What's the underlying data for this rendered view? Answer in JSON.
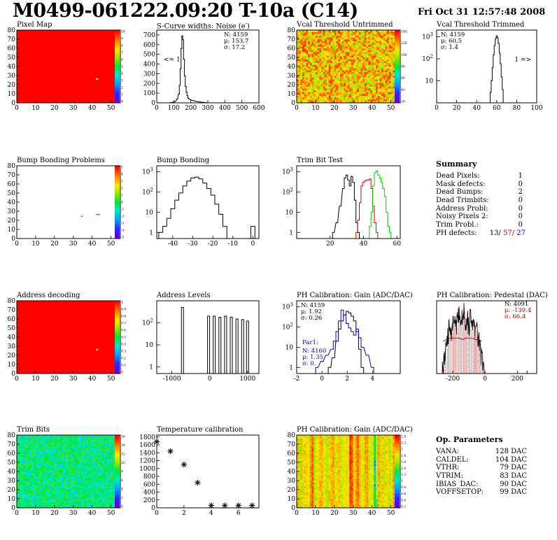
{
  "header": {
    "title": "M0499-061222.09:20 T-10a (C14)",
    "date": "Fri Oct 31 12:57:48 2008"
  },
  "colors": {
    "map_red": "#ff0000",
    "trim_bit_green": "#00cc00",
    "trim_bit_red": "#cc0000",
    "gain_blue": "#0000cc",
    "pedestal_red": "#cc0000",
    "ph_defect_red": "#cc0000",
    "ph_defect_blue": "#0000cc"
  },
  "colorbar_pixel_map": [
    "10",
    "9",
    "8",
    "7",
    "6",
    "5",
    "4",
    "3",
    "2",
    "1",
    "0"
  ],
  "colorbar_bump": [
    "5",
    "4",
    "3",
    "2",
    "1",
    "0",
    "-1",
    "-2",
    "-3",
    "-4",
    "-5"
  ],
  "colorbar_address": [
    "1",
    "0.9",
    "0.8",
    "0.7",
    "0.6",
    "0.5",
    "0.4",
    "0.3",
    "0.2",
    "0.1",
    "0"
  ],
  "colorbar_vcal": [
    "140",
    "120",
    "100",
    "80",
    "60",
    "40",
    "20"
  ],
  "colorbar_trim": [
    "16",
    "14",
    "12",
    "10",
    "8",
    "6",
    "4",
    "2",
    "0"
  ],
  "colorbar_gainmap": [
    "2.4",
    "2.2",
    "2",
    "1.8",
    "1.6",
    "1.4",
    "1.2",
    "1",
    "0.8",
    "0.6",
    "0.4",
    "0.2"
  ],
  "chart_data": [
    {
      "id": "pixel_map",
      "type": "heatmap",
      "title": "Pixel Map",
      "x_ticks": [
        "0",
        "10",
        "20",
        "30",
        "40",
        "50"
      ],
      "y_ticks": [
        "0",
        "10",
        "20",
        "30",
        "40",
        "50",
        "60",
        "70",
        "80"
      ],
      "xlim": [
        0,
        52
      ],
      "ylim": [
        0,
        80
      ],
      "fill": "uniform 10",
      "dead_pixels": [
        {
          "col": 42,
          "row": 26
        }
      ]
    },
    {
      "id": "scurve_noise",
      "type": "histogram",
      "title": "S-Curve widths: Noise (e",
      "title_sup": "-",
      "title_end": ")",
      "x_ticks": [
        "0",
        "100",
        "200",
        "300",
        "400",
        "500",
        "600"
      ],
      "xlim": [
        0,
        600
      ],
      "y_ticks": [
        "0",
        "100",
        "200",
        "300",
        "400",
        "500",
        "600",
        "700"
      ],
      "ylim": [
        0,
        750
      ],
      "stats": {
        "n": "N: 4159",
        "mean": "μ: 153.7",
        "sigma": "σ: 17.2"
      },
      "annotation": "<= 1",
      "x": [
        80,
        90,
        100,
        110,
        120,
        130,
        135,
        140,
        145,
        150,
        155,
        160,
        165,
        170,
        175,
        180,
        185,
        190,
        200,
        210,
        220,
        230,
        240,
        250,
        260,
        270,
        280,
        290
      ],
      "values": [
        2,
        4,
        8,
        15,
        40,
        90,
        180,
        350,
        560,
        690,
        650,
        450,
        280,
        170,
        110,
        75,
        50,
        40,
        30,
        25,
        20,
        15,
        12,
        10,
        7,
        5,
        4,
        2
      ]
    },
    {
      "id": "vcal_untrimmed",
      "type": "heatmap",
      "title": "Vcal Threshold Untrimmed",
      "x_ticks": [
        "0",
        "10",
        "20",
        "30",
        "40",
        "50"
      ],
      "y_ticks": [
        "0",
        "10",
        "20",
        "30",
        "40",
        "50",
        "60",
        "70",
        "80"
      ],
      "xlim": [
        0,
        52
      ],
      "ylim": [
        0,
        80
      ],
      "zlim": [
        20,
        140
      ]
    },
    {
      "id": "vcal_trimmed",
      "type": "histogram",
      "title": "Vcal Threshold Trimmed",
      "log_y": true,
      "x_ticks": [
        "0",
        "20",
        "40",
        "60",
        "80",
        "100"
      ],
      "xlim": [
        0,
        100
      ],
      "y_ticks": [
        "10",
        "10",
        "10"
      ],
      "y_sup": [
        "3",
        "2",
        ""
      ],
      "ylim": [
        1,
        2000
      ],
      "stats": {
        "n": "N: 4159",
        "mean": "μ: 60.5",
        "sigma": "σ: 1.4"
      },
      "annotation": "1 =>",
      "x": [
        53,
        54,
        55,
        56,
        57,
        58,
        59,
        60,
        61,
        62,
        63,
        64,
        65,
        66,
        67
      ],
      "values": [
        1,
        3,
        10,
        40,
        150,
        400,
        800,
        1100,
        900,
        500,
        180,
        60,
        15,
        4,
        1
      ]
    },
    {
      "id": "bump_problems",
      "type": "heatmap",
      "title": "Bump Bonding Problems",
      "x_ticks": [
        "0",
        "10",
        "20",
        "30",
        "40",
        "50"
      ],
      "y_ticks": [
        "0",
        "10",
        "20",
        "30",
        "40",
        "50",
        "60",
        "70",
        "80"
      ],
      "xlim": [
        0,
        52
      ],
      "ylim": [
        0,
        80
      ],
      "zlim": [
        -5,
        5
      ],
      "flagged": [
        {
          "col": 34,
          "row": 24
        },
        {
          "col": 42,
          "row": 26
        },
        {
          "col": 43,
          "row": 26
        }
      ]
    },
    {
      "id": "bump_bonding",
      "type": "histogram",
      "title": "Bump Bonding",
      "log_y": true,
      "x_ticks": [
        "-40",
        "-30",
        "-20",
        "-10",
        "0"
      ],
      "xlim": [
        -48,
        3
      ],
      "y_ticks": [
        "1",
        "10",
        "10",
        "10"
      ],
      "y_sup": [
        "",
        "",
        "2",
        "3"
      ],
      "ylim": [
        0.5,
        2000
      ],
      "x": [
        -46,
        -44,
        -42,
        -40,
        -38,
        -36,
        -34,
        -32,
        -30,
        -28,
        -26,
        -24,
        -22,
        -20,
        -18,
        -16,
        -14,
        -12,
        -10,
        -8,
        -6,
        -4,
        -2,
        0
      ],
      "values": [
        1,
        2,
        5,
        15,
        40,
        90,
        200,
        350,
        500,
        550,
        450,
        280,
        150,
        70,
        25,
        8,
        2,
        0,
        0,
        0,
        0,
        0,
        0,
        2
      ]
    },
    {
      "id": "trim_bit_test",
      "type": "histogram",
      "title": "Trim Bit Test",
      "log_y": true,
      "x_ticks": [
        "20",
        "40",
        "60"
      ],
      "xlim": [
        0,
        62
      ],
      "y_ticks": [
        "1",
        "10",
        "10",
        "10"
      ],
      "y_sup": [
        "",
        "",
        "2",
        "3"
      ],
      "ylim": [
        0.5,
        2000
      ],
      "series": [
        {
          "name": "trim bit 1",
          "color": "black",
          "x": [
            22,
            24,
            26,
            28,
            29,
            30,
            31,
            32,
            33,
            34,
            35,
            36,
            37
          ],
          "values": [
            1,
            3,
            20,
            150,
            500,
            700,
            400,
            200,
            600,
            300,
            40,
            3,
            1
          ]
        },
        {
          "name": "trim bit 2",
          "color": "red",
          "x": [
            36,
            37,
            38,
            39,
            40,
            41,
            42,
            43,
            44,
            45,
            46,
            47,
            48
          ],
          "values": [
            1,
            4,
            30,
            200,
            300,
            350,
            400,
            380,
            450,
            150,
            20,
            3,
            1
          ]
        },
        {
          "name": "trim bit 3",
          "color": "green",
          "x": [
            44,
            45,
            46,
            47,
            48,
            49,
            50,
            51,
            52,
            53,
            54,
            55,
            56
          ],
          "values": [
            2,
            10,
            200,
            900,
            1100,
            700,
            500,
            300,
            150,
            60,
            10,
            2,
            1
          ]
        }
      ]
    },
    {
      "id": "address_decoding",
      "type": "heatmap",
      "title": "Address decoding",
      "x_ticks": [
        "0",
        "10",
        "20",
        "30",
        "40",
        "50"
      ],
      "y_ticks": [
        "0",
        "10",
        "20",
        "30",
        "40",
        "50",
        "60",
        "70",
        "80"
      ],
      "xlim": [
        0,
        52
      ],
      "ylim": [
        0,
        80
      ],
      "zlim": [
        0,
        1
      ],
      "fill": "uniform 1",
      "dead_pixels": [
        {
          "col": 42,
          "row": 26
        }
      ]
    },
    {
      "id": "address_levels",
      "type": "histogram",
      "title": "Address Levels",
      "log_y": true,
      "x_ticks": [
        "-1000",
        "0",
        "1000"
      ],
      "xlim": [
        -1400,
        1300
      ],
      "y_ticks": [
        "1",
        "10",
        "10"
      ],
      "y_sup": [
        "",
        "",
        "2"
      ],
      "ylim": [
        0.5,
        1000
      ],
      "peaks_x": [
        -720,
        -30,
        120,
        270,
        420,
        570,
        720,
        870,
        1000
      ],
      "peaks_values": [
        500,
        200,
        200,
        180,
        200,
        180,
        150,
        140,
        120
      ]
    },
    {
      "id": "gain",
      "type": "histogram",
      "title": "PH Calibration: Gain (ADC/DAC)",
      "log_y": true,
      "x_ticks": [
        "-2",
        "0",
        "2",
        "4"
      ],
      "xlim": [
        -2,
        6.2
      ],
      "y_ticks": [
        "1",
        "10",
        "10",
        "10"
      ],
      "y_sup": [
        "",
        "",
        "2",
        "3"
      ],
      "ylim": [
        0.5,
        2000
      ],
      "stats": {
        "n": "N: 4159",
        "mean": "μ: 1.92",
        "sigma": "σ: 0.26"
      },
      "fit_label": "Par1:",
      "fit_stats": {
        "n": "N: 4160",
        "mean": "μ: 1.35",
        "sigma": "σ: 0."
      },
      "series": [
        {
          "name": "gain",
          "color": "black",
          "x": [
            0.6,
            0.9,
            1.2,
            1.4,
            1.6,
            1.8,
            2.0,
            2.2,
            2.4,
            2.6,
            2.8,
            3.0,
            3.2
          ],
          "values": [
            1,
            3,
            20,
            80,
            200,
            400,
            600,
            500,
            350,
            200,
            60,
            8,
            1
          ]
        },
        {
          "name": "par1",
          "color": "blue",
          "x": [
            -0.4,
            0,
            0.4,
            0.8,
            1.0,
            1.2,
            1.4,
            1.6,
            1.8,
            2.0,
            2.2,
            2.4,
            2.6,
            2.8,
            3.0,
            3.2,
            3.6,
            4.0
          ],
          "values": [
            1,
            2,
            4,
            8,
            20,
            60,
            200,
            700,
            400,
            150,
            90,
            60,
            40,
            80,
            30,
            10,
            4,
            1
          ]
        }
      ]
    },
    {
      "id": "pedestal",
      "type": "histogram",
      "title": "PH Calibration: Pedestal (DAC)",
      "x_ticks": [
        "-200",
        "0",
        "200"
      ],
      "xlim": [
        -300,
        320
      ],
      "y_ticks": [],
      "ylim": [
        0,
        45
      ],
      "stats": {
        "n": "N: 4091",
        "mean": "μ: -139.4",
        "sigma": "σ: 66.4"
      },
      "series": [
        {
          "name": "pedestal",
          "color": "black",
          "x": [
            -260,
            -250,
            -240,
            -230,
            -220,
            -210,
            -200,
            -190,
            -180,
            -170,
            -160,
            -150,
            -140,
            -130,
            -120,
            -110,
            -100,
            -90,
            -80,
            -70,
            -60,
            -50,
            -40,
            -30,
            -20,
            -10
          ],
          "values": [
            2,
            8,
            15,
            22,
            28,
            25,
            30,
            35,
            28,
            32,
            36,
            30,
            34,
            38,
            30,
            33,
            29,
            35,
            27,
            30,
            24,
            26,
            20,
            18,
            10,
            3
          ]
        },
        {
          "name": "fit",
          "color": "red",
          "x": [
            -260,
            -240,
            -220,
            -200,
            -180,
            -160,
            -140,
            -120,
            -100,
            -80,
            -60,
            -40,
            -20
          ],
          "values": [
            20,
            21,
            22,
            22,
            22,
            22,
            21,
            22,
            22,
            22,
            21,
            21,
            20
          ]
        }
      ],
      "outlier": {
        "x": 260,
        "value": 1
      }
    },
    {
      "id": "trim_bits",
      "type": "heatmap",
      "title": "Trim Bits",
      "x_ticks": [
        "0",
        "10",
        "20",
        "30",
        "40",
        "50"
      ],
      "y_ticks": [
        "0",
        "10",
        "20",
        "30",
        "40",
        "50",
        "60",
        "70",
        "80"
      ],
      "xlim": [
        0,
        52
      ],
      "ylim": [
        0,
        80
      ],
      "zlim": [
        0,
        16
      ]
    },
    {
      "id": "temperature",
      "type": "scatter",
      "title": "Temperature calibration",
      "x_ticks": [
        "0",
        "2",
        "4",
        "6"
      ],
      "xlim": [
        0,
        7.5
      ],
      "y_ticks": [
        "0",
        "200",
        "400",
        "600",
        "800",
        "1000",
        "1200",
        "1400",
        "1600",
        "1800"
      ],
      "ylim": [
        0,
        1850
      ],
      "x": [
        0,
        1,
        2,
        3,
        4,
        5,
        6,
        7
      ],
      "values": [
        1680,
        1440,
        1100,
        640,
        60,
        60,
        60,
        60
      ]
    },
    {
      "id": "gain_map",
      "type": "heatmap",
      "title": "PH Calibration: Gain (ADC/DAC)",
      "x_ticks": [
        "0",
        "10",
        "20",
        "30",
        "40",
        "50"
      ],
      "y_ticks": [
        "0",
        "10",
        "20",
        "30",
        "40",
        "50",
        "60",
        "70",
        "80"
      ],
      "xlim": [
        0,
        52
      ],
      "ylim": [
        0,
        80
      ],
      "zlim": [
        0.2,
        2.4
      ]
    }
  ],
  "summary": {
    "title": "Summary",
    "rows": [
      {
        "label": "Dead Pixels:",
        "value": "1"
      },
      {
        "label": "Mask defects:",
        "value": "0"
      },
      {
        "label": "Dead Bumps:",
        "value": "2"
      },
      {
        "label": "Dead Trimbits:",
        "value": "0"
      },
      {
        "label": "Address Probl:",
        "value": "0"
      },
      {
        "label": "Noisy Pixels 2:",
        "value": "0"
      },
      {
        "label": "Trim Probl.:",
        "value": "0"
      }
    ],
    "ph_label": "PH defects:",
    "ph_values": {
      "a": "13/",
      "b": "57/",
      "c": "27"
    }
  },
  "op_parameters": {
    "title": "Op. Parameters",
    "rows": [
      {
        "label": "VANA:",
        "value": "128 DAC"
      },
      {
        "label": "CALDEL:",
        "value": "104 DAC"
      },
      {
        "label": "VTHR:",
        "value": "79 DAC"
      },
      {
        "label": "VTRIM:",
        "value": "83 DAC"
      },
      {
        "label": "IBIAS_DAC:",
        "value": "90 DAC"
      },
      {
        "label": "VOFFSETOP:",
        "value": "99 DAC"
      }
    ]
  }
}
